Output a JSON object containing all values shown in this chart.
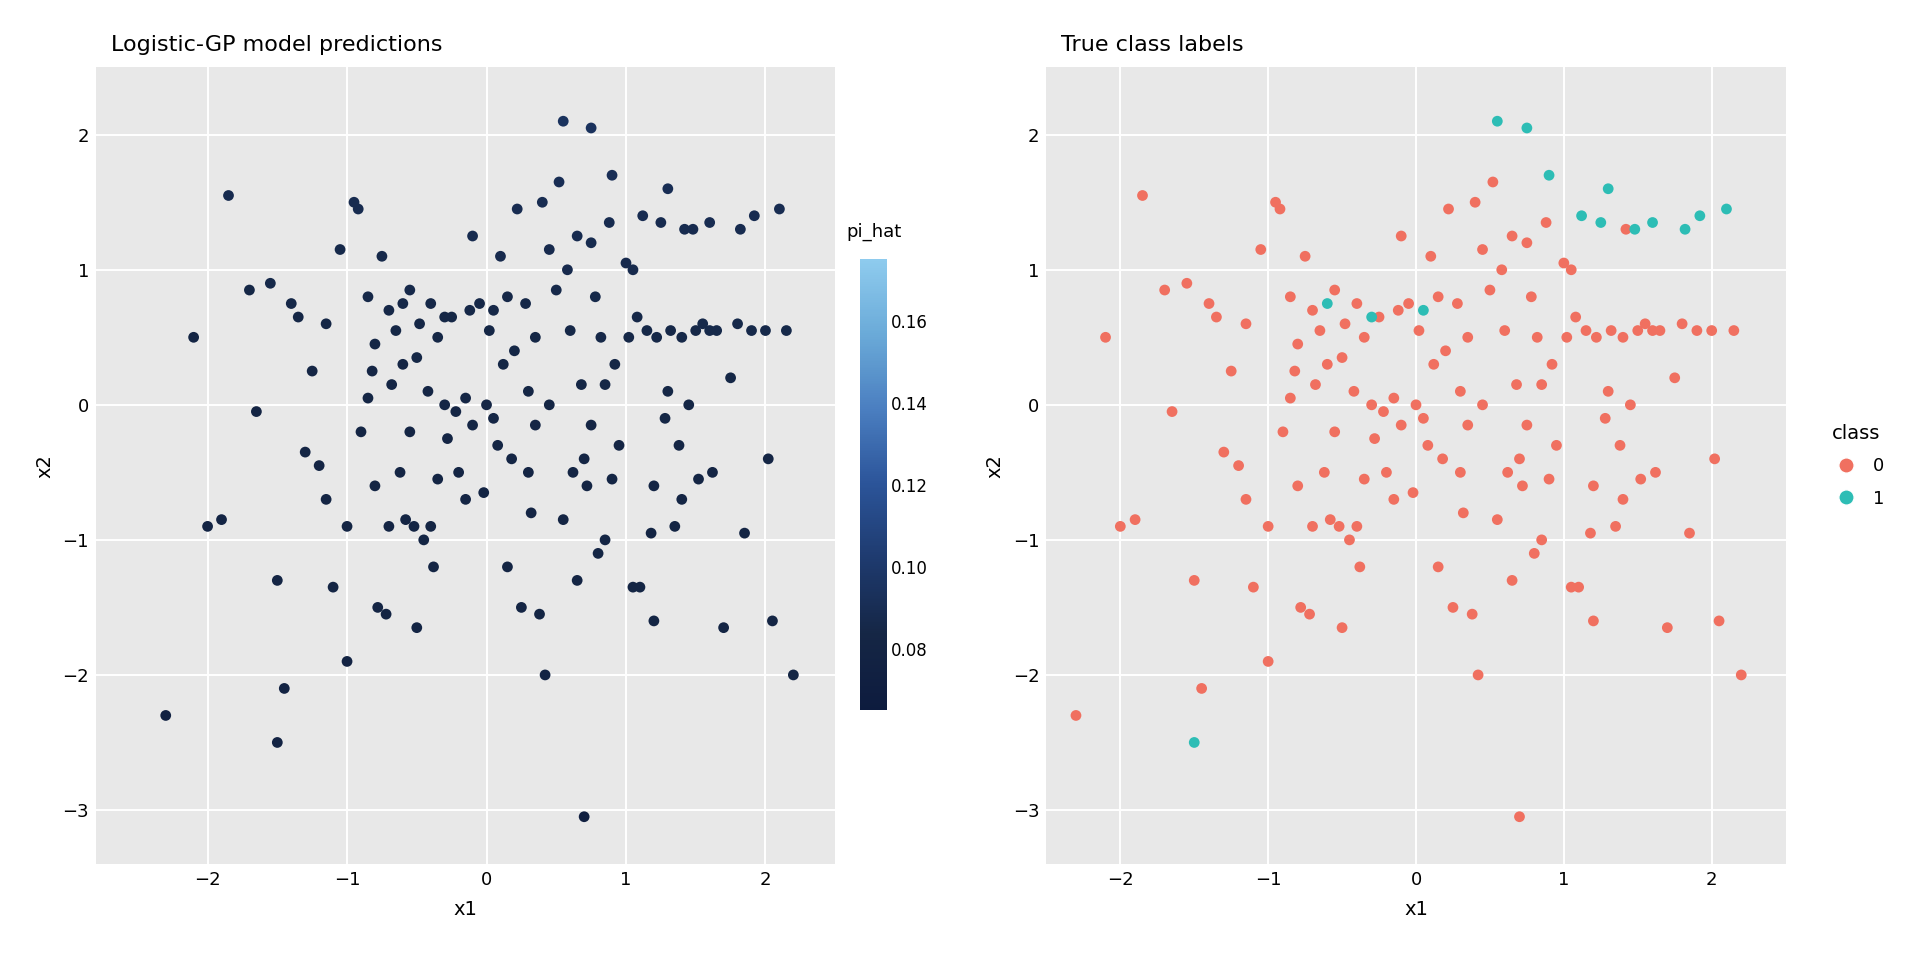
{
  "title_left": "Logistic-GP model predictions",
  "title_right": "True class labels",
  "xlabel": "x1",
  "ylabel": "x2",
  "xlim_left": [
    -2.8,
    2.5
  ],
  "ylim_left": [
    -3.4,
    2.5
  ],
  "xlim_right": [
    -2.5,
    2.5
  ],
  "ylim_right": [
    -3.4,
    2.5
  ],
  "bg_color": "#E8E8E8",
  "grid_color": "#FFFFFF",
  "colorbar_label": "pi_hat",
  "colorbar_ticks": [
    0.08,
    0.1,
    0.12,
    0.14,
    0.16
  ],
  "colorbar_vmin": 0.065,
  "colorbar_vmax": 0.175,
  "class0_color": "#F07060",
  "class1_color": "#2DBDB5",
  "cmap_colors": [
    "#0D1B3E",
    "#152645",
    "#1E3A6E",
    "#2B5499",
    "#4A7EC0",
    "#6AAAD8",
    "#8ECBEE"
  ],
  "title_fontsize": 16,
  "label_fontsize": 14,
  "tick_fontsize": 13,
  "marker_size": 60,
  "points": [
    [
      -2.3,
      -2.3,
      0.075,
      0
    ],
    [
      -2.1,
      0.5,
      0.082,
      0
    ],
    [
      -2.0,
      -0.9,
      0.08,
      0
    ],
    [
      -1.9,
      -0.85,
      0.08,
      0
    ],
    [
      -1.85,
      1.55,
      0.088,
      0
    ],
    [
      -1.7,
      0.85,
      0.084,
      0
    ],
    [
      -1.65,
      -0.05,
      0.081,
      0
    ],
    [
      -1.55,
      0.9,
      0.086,
      0
    ],
    [
      -1.5,
      -1.3,
      0.081,
      0
    ],
    [
      -1.45,
      -2.1,
      0.079,
      0
    ],
    [
      -1.4,
      0.75,
      0.085,
      0
    ],
    [
      -1.35,
      0.65,
      0.084,
      0
    ],
    [
      -1.3,
      -0.35,
      0.082,
      0
    ],
    [
      -1.25,
      0.25,
      0.083,
      0
    ],
    [
      -1.2,
      -0.45,
      0.081,
      0
    ],
    [
      -1.15,
      0.6,
      0.084,
      0
    ],
    [
      -1.1,
      -1.35,
      0.081,
      0
    ],
    [
      -1.05,
      1.15,
      0.086,
      0
    ],
    [
      -1.0,
      -0.9,
      0.081,
      0
    ],
    [
      -1.0,
      -1.9,
      0.079,
      0
    ],
    [
      -0.95,
      1.5,
      0.088,
      0
    ],
    [
      -0.92,
      1.45,
      0.088,
      0
    ],
    [
      -0.9,
      -0.2,
      0.082,
      0
    ],
    [
      -0.85,
      0.8,
      0.085,
      0
    ],
    [
      -0.82,
      0.25,
      0.083,
      0
    ],
    [
      -0.8,
      -0.6,
      0.082,
      0
    ],
    [
      -0.78,
      -1.5,
      0.081,
      0
    ],
    [
      -0.75,
      1.1,
      0.086,
      0
    ],
    [
      -0.72,
      -1.55,
      0.081,
      0
    ],
    [
      -0.7,
      0.7,
      0.085,
      0
    ],
    [
      -0.68,
      0.15,
      0.083,
      0
    ],
    [
      -0.65,
      0.55,
      0.084,
      0
    ],
    [
      -0.62,
      -0.5,
      0.082,
      0
    ],
    [
      -0.6,
      0.3,
      0.083,
      0
    ],
    [
      -0.58,
      -0.85,
      0.081,
      0
    ],
    [
      -0.55,
      -0.2,
      0.082,
      0
    ],
    [
      -0.52,
      -0.9,
      0.081,
      0
    ],
    [
      -0.5,
      -1.65,
      0.08,
      0
    ],
    [
      -0.48,
      0.6,
      0.084,
      0
    ],
    [
      -0.45,
      -1.0,
      0.081,
      0
    ],
    [
      -0.42,
      0.1,
      0.083,
      0
    ],
    [
      -0.4,
      -0.9,
      0.081,
      0
    ],
    [
      -0.38,
      -1.2,
      0.081,
      0
    ],
    [
      -0.35,
      0.5,
      0.084,
      0
    ],
    [
      -0.3,
      0.0,
      0.083,
      0
    ],
    [
      -0.28,
      -0.25,
      0.082,
      0
    ],
    [
      -0.25,
      0.65,
      0.084,
      0
    ],
    [
      -0.22,
      -0.05,
      0.083,
      0
    ],
    [
      -0.2,
      -0.5,
      0.082,
      0
    ],
    [
      -0.15,
      0.05,
      0.083,
      0
    ],
    [
      -0.12,
      0.7,
      0.085,
      0
    ],
    [
      -0.1,
      -0.15,
      0.083,
      0
    ],
    [
      -0.05,
      0.75,
      0.085,
      0
    ],
    [
      -0.02,
      -0.65,
      0.082,
      0
    ],
    [
      0.0,
      0.0,
      0.083,
      0
    ],
    [
      0.02,
      0.55,
      0.084,
      0
    ],
    [
      0.05,
      -0.1,
      0.083,
      0
    ],
    [
      0.08,
      -0.3,
      0.083,
      0
    ],
    [
      0.1,
      1.1,
      0.087,
      0
    ],
    [
      0.12,
      0.3,
      0.084,
      0
    ],
    [
      0.15,
      0.8,
      0.085,
      0
    ],
    [
      0.18,
      -0.4,
      0.082,
      0
    ],
    [
      0.2,
      0.4,
      0.084,
      0
    ],
    [
      0.22,
      1.45,
      0.089,
      0
    ],
    [
      0.25,
      -1.5,
      0.081,
      0
    ],
    [
      0.28,
      0.75,
      0.085,
      0
    ],
    [
      0.3,
      0.1,
      0.083,
      0
    ],
    [
      0.32,
      -0.8,
      0.082,
      0
    ],
    [
      0.35,
      0.5,
      0.084,
      0
    ],
    [
      0.38,
      -1.55,
      0.081,
      0
    ],
    [
      0.4,
      1.5,
      0.089,
      0
    ],
    [
      0.42,
      -2.0,
      0.08,
      0
    ],
    [
      0.45,
      0.0,
      0.083,
      0
    ],
    [
      0.5,
      0.85,
      0.086,
      0
    ],
    [
      0.52,
      1.65,
      0.09,
      0
    ],
    [
      0.55,
      2.1,
      0.094,
      1
    ],
    [
      0.58,
      1.0,
      0.087,
      0
    ],
    [
      0.62,
      -0.5,
      0.082,
      0
    ],
    [
      0.65,
      1.25,
      0.088,
      0
    ],
    [
      0.68,
      0.15,
      0.084,
      0
    ],
    [
      0.7,
      -0.4,
      0.082,
      0
    ],
    [
      0.72,
      -0.6,
      0.082,
      0
    ],
    [
      0.75,
      1.2,
      0.088,
      0
    ],
    [
      0.75,
      2.05,
      0.094,
      1
    ],
    [
      0.78,
      0.8,
      0.086,
      0
    ],
    [
      0.8,
      -1.1,
      0.082,
      0
    ],
    [
      0.82,
      0.5,
      0.085,
      0
    ],
    [
      0.85,
      -1.0,
      0.082,
      0
    ],
    [
      0.88,
      1.35,
      0.088,
      0
    ],
    [
      0.9,
      1.7,
      0.091,
      1
    ],
    [
      0.92,
      0.3,
      0.084,
      0
    ],
    [
      0.95,
      -0.3,
      0.083,
      0
    ],
    [
      1.0,
      1.05,
      0.087,
      0
    ],
    [
      1.02,
      0.5,
      0.085,
      0
    ],
    [
      1.05,
      -1.35,
      0.082,
      0
    ],
    [
      1.08,
      0.65,
      0.085,
      0
    ],
    [
      1.1,
      -1.35,
      0.082,
      0
    ],
    [
      1.12,
      1.4,
      0.089,
      1
    ],
    [
      1.15,
      0.55,
      0.085,
      0
    ],
    [
      1.18,
      -0.95,
      0.082,
      0
    ],
    [
      1.2,
      -1.6,
      0.081,
      0
    ],
    [
      1.22,
      0.5,
      0.085,
      0
    ],
    [
      1.25,
      1.35,
      0.088,
      1
    ],
    [
      1.28,
      -0.1,
      0.084,
      0
    ],
    [
      1.3,
      1.6,
      0.09,
      1
    ],
    [
      1.32,
      0.55,
      0.085,
      0
    ],
    [
      1.35,
      -0.9,
      0.082,
      0
    ],
    [
      1.38,
      -0.3,
      0.083,
      0
    ],
    [
      1.4,
      0.5,
      0.085,
      0
    ],
    [
      1.42,
      1.3,
      0.088,
      0
    ],
    [
      1.45,
      0.0,
      0.084,
      0
    ],
    [
      1.48,
      1.3,
      0.088,
      1
    ],
    [
      1.5,
      0.55,
      0.085,
      0
    ],
    [
      1.52,
      -0.55,
      0.082,
      0
    ],
    [
      1.55,
      0.6,
      0.086,
      0
    ],
    [
      1.6,
      0.55,
      0.086,
      0
    ],
    [
      1.62,
      -0.5,
      0.082,
      0
    ],
    [
      1.65,
      0.55,
      0.086,
      0
    ],
    [
      1.7,
      -1.65,
      0.081,
      0
    ],
    [
      1.8,
      0.6,
      0.086,
      0
    ],
    [
      1.82,
      1.3,
      0.088,
      1
    ],
    [
      1.85,
      -0.95,
      0.082,
      0
    ],
    [
      1.9,
      0.55,
      0.086,
      0
    ],
    [
      1.92,
      1.4,
      0.089,
      1
    ],
    [
      2.0,
      0.55,
      0.086,
      0
    ],
    [
      2.02,
      -0.4,
      0.083,
      0
    ],
    [
      2.05,
      -1.6,
      0.081,
      0
    ],
    [
      2.1,
      1.45,
      0.089,
      1
    ],
    [
      2.15,
      0.55,
      0.086,
      0
    ],
    [
      2.2,
      -2.0,
      0.081,
      0
    ],
    [
      0.7,
      -3.05,
      0.074,
      0
    ],
    [
      -1.5,
      -2.5,
      0.079,
      1
    ],
    [
      -0.6,
      0.75,
      0.085,
      1
    ],
    [
      -0.3,
      0.65,
      0.084,
      1
    ],
    [
      0.05,
      0.7,
      0.085,
      1
    ],
    [
      -0.15,
      -0.7,
      0.082,
      0
    ],
    [
      0.6,
      0.55,
      0.085,
      0
    ],
    [
      0.35,
      -0.15,
      0.083,
      0
    ],
    [
      -0.5,
      0.35,
      0.084,
      0
    ],
    [
      0.9,
      -0.55,
      0.082,
      0
    ],
    [
      1.3,
      0.1,
      0.084,
      0
    ],
    [
      -0.85,
      0.05,
      0.083,
      0
    ],
    [
      0.55,
      -0.85,
      0.082,
      0
    ],
    [
      -0.4,
      0.75,
      0.085,
      0
    ],
    [
      0.75,
      -0.15,
      0.083,
      0
    ],
    [
      1.6,
      1.35,
      0.089,
      1
    ],
    [
      -0.1,
      1.25,
      0.088,
      0
    ],
    [
      0.3,
      -0.5,
      0.082,
      0
    ],
    [
      -0.7,
      -0.9,
      0.081,
      0
    ],
    [
      1.05,
      1.0,
      0.087,
      0
    ],
    [
      -0.55,
      0.85,
      0.086,
      0
    ],
    [
      0.85,
      0.15,
      0.084,
      0
    ],
    [
      1.4,
      -0.7,
      0.082,
      0
    ],
    [
      -1.15,
      -0.7,
      0.081,
      0
    ],
    [
      0.15,
      -1.2,
      0.081,
      0
    ],
    [
      0.45,
      1.15,
      0.087,
      0
    ],
    [
      -0.35,
      -0.55,
      0.082,
      0
    ],
    [
      0.65,
      -1.3,
      0.081,
      0
    ],
    [
      1.75,
      0.2,
      0.084,
      0
    ],
    [
      -0.8,
      0.45,
      0.084,
      0
    ],
    [
      1.2,
      -0.6,
      0.082,
      0
    ]
  ]
}
